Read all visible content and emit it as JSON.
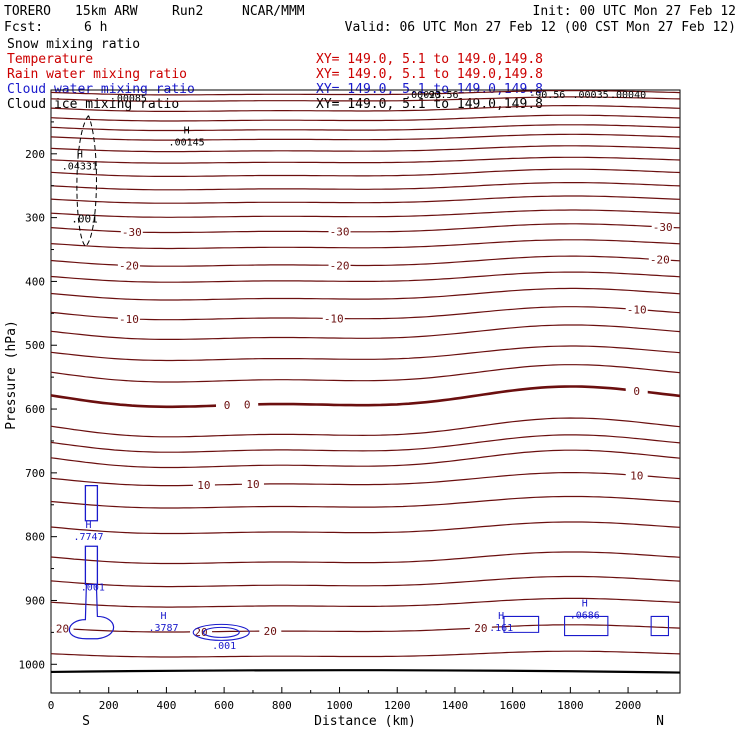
{
  "header": {
    "model": "TORERO",
    "resolution": "15km ARW",
    "run": "Run2",
    "org": "NCAR/MMM",
    "init": "Init: 00 UTC Mon 27 Feb 12",
    "fcst_label": "Fcst:",
    "fcst_value": "6 h",
    "valid": "Valid: 06 UTC Mon 27 Feb 12 (00 CST Mon 27 Feb 12)"
  },
  "legend": [
    {
      "name": "Snow mixing ratio",
      "xy": "",
      "color": "#000000"
    },
    {
      "name": "Temperature",
      "xy": "XY= 149.0,  5.1 to 149.0,149.8",
      "color": "#cc0000"
    },
    {
      "name": "Rain water mixing ratio",
      "xy": "XY= 149.0,  5.1 to 149.0,149.8",
      "color": "#cc0000"
    },
    {
      "name": "Cloud water mixing ratio",
      "xy": "XY= 149.0,  5.1 to 149.0,149.8",
      "color": "#1a1acc"
    },
    {
      "name": "Cloud ice mixing ratio",
      "xy": "XY= 149.0,  5.1 to 149.0,149.8",
      "color": "#000000"
    }
  ],
  "first_xy": "XY= 149.0,  5.1 to 149.0,149.8",
  "chart_data": {
    "type": "cross-section contour",
    "xlabel": "Distance (km)",
    "ylabel": "Pressure (hPa)",
    "xlim": [
      0,
      2180
    ],
    "ylim": [
      1045,
      100
    ],
    "x_ticks": [
      0,
      200,
      400,
      600,
      800,
      1000,
      1200,
      1400,
      1600,
      1800,
      2000
    ],
    "y_ticks": [
      200,
      300,
      400,
      500,
      600,
      700,
      800,
      900,
      1000
    ],
    "left_end": "S",
    "right_end": "N",
    "isotherm_label_color": "#6b0f0f",
    "isotherms": [
      {
        "base": 105,
        "amp": 3
      },
      {
        "base": 115,
        "amp": 3
      },
      {
        "base": 130,
        "amp": 4
      },
      {
        "base": 145,
        "amp": 4
      },
      {
        "base": 160,
        "amp": 4
      },
      {
        "base": 175,
        "amp": 4
      },
      {
        "base": 193,
        "amp": 4
      },
      {
        "base": 211,
        "amp": 4
      },
      {
        "base": 231,
        "amp": 5
      },
      {
        "base": 252,
        "amp": 5
      },
      {
        "base": 273,
        "amp": 5
      },
      {
        "base": 295,
        "amp": 5
      },
      {
        "base": 318,
        "amp": 6,
        "label": "-30",
        "labels_x": [
          280,
          1000,
          2120
        ]
      },
      {
        "base": 343,
        "amp": 6
      },
      {
        "base": 370,
        "amp": 7,
        "label": "-20",
        "labels_x": [
          270,
          1000,
          2110
        ]
      },
      {
        "base": 395,
        "amp": 7
      },
      {
        "base": 422,
        "amp": 8
      },
      {
        "base": 452,
        "amp": 9,
        "label": "-10",
        "labels_x": [
          270,
          980,
          2030
        ]
      },
      {
        "base": 482,
        "amp": 10
      },
      {
        "base": 515,
        "amp": 10
      },
      {
        "base": 547,
        "amp": 12
      },
      {
        "base": 584,
        "amp": 14,
        "label": "0",
        "bold": true,
        "labels_x": [
          610,
          680,
          2030
        ]
      },
      {
        "base": 632,
        "amp": 13
      },
      {
        "base": 657,
        "amp": 12
      },
      {
        "base": 681,
        "amp": 12
      },
      {
        "base": 712,
        "amp": 9,
        "label": "10",
        "labels_x": [
          530,
          700,
          2030
        ]
      },
      {
        "base": 748,
        "amp": 8
      },
      {
        "base": 788,
        "amp": 8
      },
      {
        "base": 835,
        "amp": 8
      },
      {
        "base": 872,
        "amp": 7
      },
      {
        "base": 905,
        "amp": 6
      },
      {
        "base": 945,
        "amp": 5,
        "label": "20",
        "labels_x": [
          40,
          520,
          760,
          1490
        ]
      },
      {
        "base": 985,
        "amp": 4
      }
    ],
    "label_values": [
      "-30",
      "-20",
      "-10",
      "0",
      "10",
      "20"
    ],
    "cloud_ice_maxima": [
      {
        "x": 270,
        "p": 112,
        "value": ".00085"
      },
      {
        "x": 470,
        "p": 181,
        "value": ".00145"
      },
      {
        "x": 100,
        "p": 218,
        "value": ".04331"
      },
      {
        "x": 1290,
        "p": 106,
        "value": ".00023"
      },
      {
        "x": 1350,
        "p": 106,
        "value": "-90.56"
      },
      {
        "x": 1720,
        "p": 106,
        "value": "-90.56"
      },
      {
        "x": 1870,
        "p": 106,
        "value": ".00035"
      },
      {
        "x": 2000,
        "p": 106,
        "value": ".00040"
      }
    ],
    "cloud_ice_contour": {
      "value": ".001",
      "center_x": 130,
      "p_top": 140,
      "p_bottom": 345
    },
    "cloud_water_maxima": [
      {
        "x": 130,
        "p": 802,
        "value": ".7747"
      },
      {
        "x": 390,
        "p": 945,
        "value": ".3787"
      },
      {
        "x": 1560,
        "p": 945,
        "value": ".161"
      },
      {
        "x": 1850,
        "p": 925,
        "value": ".0686"
      }
    ],
    "cloud_water_contour_labels": [
      ".001",
      ".001"
    ]
  }
}
